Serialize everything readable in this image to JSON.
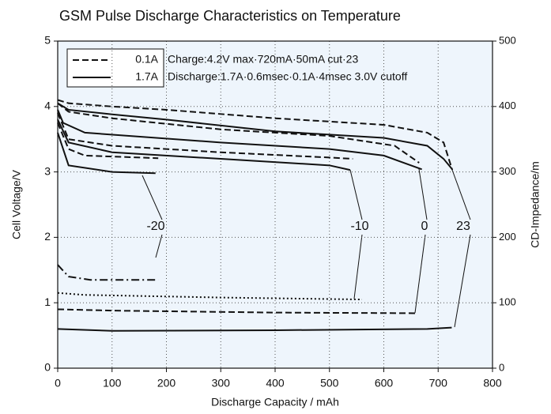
{
  "chart_data": {
    "type": "line",
    "title": "GSM Pulse Discharge Characteristics on Temperature",
    "xlabel": "Discharge Capacity / mAh",
    "ylabel": "Cell Voltage/V",
    "y2label": "CD-Impedance/m",
    "xlim": [
      0,
      800
    ],
    "xticks": [
      0,
      100,
      200,
      300,
      400,
      500,
      600,
      700,
      800
    ],
    "ylim": [
      0,
      5
    ],
    "yticks": [
      0,
      1,
      2,
      3,
      4,
      5
    ],
    "y2lim": [
      0,
      500
    ],
    "y2ticks": [
      0,
      100,
      200,
      300,
      400,
      500
    ],
    "grid": true,
    "legend": [
      {
        "name": "0.1A",
        "dash": "dashed"
      },
      {
        "name": "1.7A",
        "dash": "solid"
      }
    ],
    "notes": [
      "Charge:4.2V max·720mA·50mA cut·23",
      "Discharge:1.7A·0.6msec·0.1A·4msec 3.0V cutoff"
    ],
    "annotations": [
      "-20",
      "-10",
      "0",
      "23"
    ],
    "series": [
      {
        "dash": "dashed",
        "x": [
          0,
          20,
          100,
          200,
          400,
          600,
          680,
          710,
          726
        ],
        "values": [
          4.1,
          4.05,
          4.0,
          3.95,
          3.82,
          3.72,
          3.6,
          3.45,
          3.03
        ]
      },
      {
        "dash": "solid",
        "x": [
          0,
          20,
          100,
          200,
          400,
          600,
          680,
          710,
          725
        ],
        "values": [
          4.05,
          3.95,
          3.88,
          3.8,
          3.62,
          3.52,
          3.4,
          3.2,
          3.05
        ]
      },
      {
        "dash": "dashed",
        "x": [
          0,
          20,
          100,
          300,
          500,
          620,
          665
        ],
        "values": [
          4.05,
          3.92,
          3.82,
          3.65,
          3.55,
          3.4,
          3.14
        ]
      },
      {
        "dash": "solid",
        "x": [
          0,
          10,
          50,
          300,
          500,
          600,
          670
        ],
        "values": [
          3.95,
          3.75,
          3.6,
          3.45,
          3.35,
          3.25,
          3.04
        ]
      },
      {
        "dash": "dashed",
        "x": [
          0,
          20,
          100,
          300,
          500,
          543
        ],
        "values": [
          3.9,
          3.5,
          3.4,
          3.3,
          3.22,
          3.2
        ]
      },
      {
        "dash": "solid",
        "x": [
          0,
          20,
          100,
          300,
          500,
          538
        ],
        "values": [
          3.8,
          3.45,
          3.3,
          3.2,
          3.1,
          3.03
        ]
      },
      {
        "dash": "dashed",
        "x": [
          0,
          20,
          50,
          185
        ],
        "values": [
          3.75,
          3.35,
          3.25,
          3.21
        ]
      },
      {
        "dash": "solid",
        "x": [
          0,
          20,
          100,
          180
        ],
        "values": [
          3.6,
          3.1,
          3.0,
          2.98
        ]
      },
      {
        "dash": "dashdot",
        "axis": "y2",
        "x": [
          0,
          20,
          60,
          185
        ],
        "values": [
          158,
          140,
          135,
          135
        ]
      },
      {
        "dash": "dotted",
        "axis": "y2",
        "x": [
          0,
          50,
          300,
          560
        ],
        "values": [
          115,
          112,
          108,
          105
        ]
      },
      {
        "dash": "dashed",
        "axis": "y2",
        "x": [
          0,
          100,
          400,
          660
        ],
        "values": [
          90,
          88,
          85,
          84
        ]
      },
      {
        "dash": "solid",
        "axis": "y2",
        "x": [
          0,
          100,
          400,
          680,
          725
        ],
        "values": [
          60,
          57,
          58,
          60,
          62
        ]
      }
    ]
  }
}
